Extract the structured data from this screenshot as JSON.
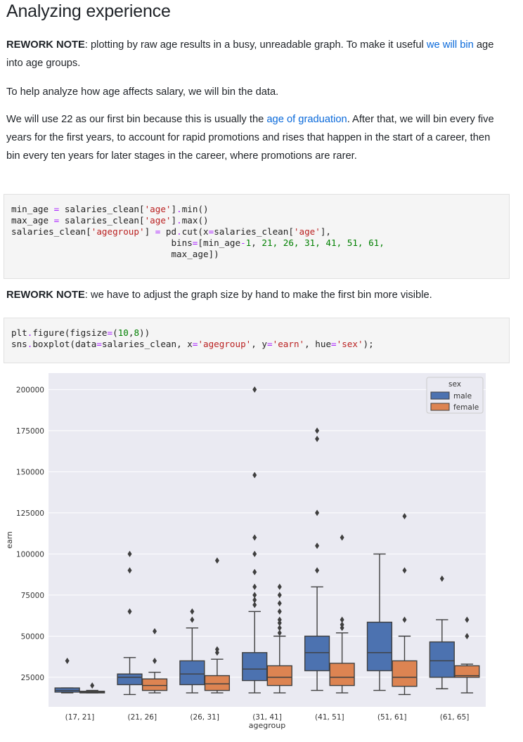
{
  "title": "Analyzing experience",
  "note1": {
    "label": "REWORK NOTE",
    "text_a": ": plotting by raw age results in a busy, unreadable graph. To make it useful ",
    "link": "we will bin",
    "text_b": " age into age groups."
  },
  "para2": "To help analyze how age affects salary, we will bin the data.",
  "para3": {
    "text_a": "We will use 22 as our first bin because this is usually the ",
    "link": "age of graduation",
    "text_b": ". After that, we will bin every five years for the first years, to account for rapid promotions and rises that happen in the start of a career, then bin every ten years for later stages in the career, where promotions are rarer."
  },
  "code1": {
    "l1_a": "min_age ",
    "l1_op": "=",
    "l1_b": " salaries_clean[",
    "l1_s": "'age'",
    "l1_c": "]",
    "l1_d": ".",
    "l1_e": "min()",
    "l2_a": "max_age ",
    "l2_op": "=",
    "l2_b": " salaries_clean[",
    "l2_s": "'age'",
    "l2_c": "]",
    "l2_d": ".",
    "l2_e": "max()",
    "l3_a": "salaries_clean[",
    "l3_s": "'agegroup'",
    "l3_b": "] ",
    "l3_op": "=",
    "l3_c": " pd",
    "l3_d": ".",
    "l3_e": "cut(x",
    "l3_op2": "=",
    "l3_f": "salaries_clean[",
    "l3_s2": "'age'",
    "l3_g": "],",
    "l4_a": "                              bins",
    "l4_op": "=",
    "l4_b": "[min_age",
    "l4_op2": "-",
    "l4_n1": "1",
    "l4_c": ", ",
    "l4_nums": "21, 26, 31, 41, 51, 61,",
    "l5_a": "                              max_age])"
  },
  "note2": {
    "label": "REWORK NOTE",
    "text": ": we have to adjust the graph size by hand to make the first bin more visible."
  },
  "code2": {
    "l1_a": "plt",
    "l1_d": ".",
    "l1_b": "figure(figsize",
    "l1_op": "=",
    "l1_c": "(",
    "l1_n1": "10",
    "l1_e": ",",
    "l1_n2": "8",
    "l1_f": "))",
    "l2_a": "sns",
    "l2_d": ".",
    "l2_b": "boxplot(data",
    "l2_op": "=",
    "l2_c": "salaries_clean, x",
    "l2_op2": "=",
    "l2_s1": "'agegroup'",
    "l2_e": ", y",
    "l2_op3": "=",
    "l2_s2": "'earn'",
    "l2_f": ", hue",
    "l2_op4": "=",
    "l2_s3": "'sex'",
    "l2_g": ");"
  },
  "chart_data": {
    "type": "box",
    "title": "",
    "xlabel": "agegroup",
    "ylabel": "earn",
    "ylim": [
      7000,
      210000
    ],
    "yticks": [
      25000,
      50000,
      75000,
      100000,
      125000,
      150000,
      175000,
      200000
    ],
    "grid": true,
    "legend": {
      "title": "sex",
      "placement": "top-right"
    },
    "categories": [
      "(17, 21]",
      "(21, 26]",
      "(26, 31]",
      "(31, 41]",
      "(41, 51]",
      "(51, 61]",
      "(61, 65]"
    ],
    "series": [
      {
        "name": "male",
        "color": "#4c72b0",
        "boxes": [
          {
            "whislo": 15500,
            "q1": 16000,
            "med": 17000,
            "q3": 18500,
            "whishi": 18500,
            "fliers": [
              35000
            ]
          },
          {
            "whislo": 14500,
            "q1": 20500,
            "med": 25000,
            "q3": 27000,
            "whishi": 37000,
            "fliers": [
              65000,
              90000,
              100000
            ]
          },
          {
            "whislo": 15500,
            "q1": 20500,
            "med": 27000,
            "q3": 35000,
            "whishi": 55000,
            "fliers": [
              60000,
              65000
            ]
          },
          {
            "whislo": 15500,
            "q1": 23000,
            "med": 30000,
            "q3": 40000,
            "whishi": 65000,
            "fliers": [
              69000,
              72000,
              75000,
              80000,
              89000,
              100000,
              110000,
              148000,
              200000
            ]
          },
          {
            "whislo": 17000,
            "q1": 29000,
            "med": 40000,
            "q3": 50000,
            "whishi": 80000,
            "fliers": [
              90000,
              105000,
              125000,
              170000,
              175000
            ]
          },
          {
            "whislo": 17000,
            "q1": 29000,
            "med": 40000,
            "q3": 58500,
            "whishi": 100000,
            "fliers": []
          },
          {
            "whislo": 18000,
            "q1": 25000,
            "med": 35000,
            "q3": 46500,
            "whishi": 60000,
            "fliers": [
              85000
            ]
          }
        ]
      },
      {
        "name": "female",
        "color": "#dd8452",
        "boxes": [
          {
            "whislo": 15500,
            "q1": 15500,
            "med": 16000,
            "q3": 16500,
            "whishi": 17000,
            "fliers": [
              20000
            ]
          },
          {
            "whislo": 15500,
            "q1": 17000,
            "med": 20000,
            "q3": 24000,
            "whishi": 28000,
            "fliers": [
              35000,
              53000
            ]
          },
          {
            "whislo": 15500,
            "q1": 17000,
            "med": 21000,
            "q3": 26000,
            "whishi": 36000,
            "fliers": [
              40000,
              42000,
              96000
            ]
          },
          {
            "whislo": 15500,
            "q1": 20000,
            "med": 25000,
            "q3": 32000,
            "whishi": 50000,
            "fliers": [
              52000,
              55000,
              58000,
              60000,
              65000,
              70000,
              75000,
              80000
            ]
          },
          {
            "whislo": 15500,
            "q1": 20000,
            "med": 25000,
            "q3": 33500,
            "whishi": 52000,
            "fliers": [
              55000,
              57000,
              60000,
              110000
            ]
          },
          {
            "whislo": 14500,
            "q1": 19500,
            "med": 25000,
            "q3": 35000,
            "whishi": 50000,
            "fliers": [
              60000,
              90000,
              123000
            ]
          },
          {
            "whislo": 15500,
            "q1": 25000,
            "med": 26000,
            "q3": 32000,
            "whishi": 33000,
            "fliers": [
              50000,
              60000
            ]
          }
        ]
      }
    ]
  }
}
